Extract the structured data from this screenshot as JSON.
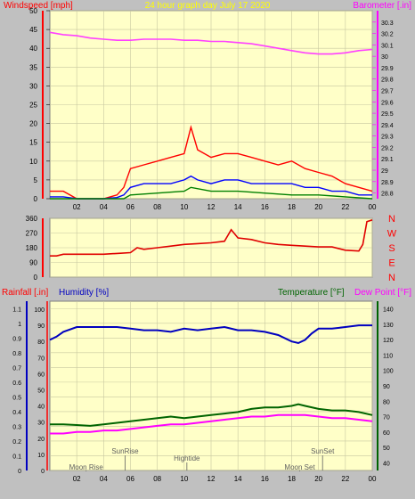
{
  "title": "24 hour graph day   July 17 2020",
  "colors": {
    "background": "#c0c0c0",
    "plot_bg": "#ffffc8",
    "grid": "#c8c8a0",
    "wind_axis": "#ff0000",
    "baro_axis": "#ff00ff",
    "wind": "#ff0000",
    "wind_avg": "#0000ff",
    "wind_low": "#008000",
    "barometer": "#ff40ff",
    "direction": "#e00000",
    "rain_axis": "#ff0000",
    "humidity": "#0000c0",
    "temperature": "#006400",
    "dewpoint": "#ff00ff",
    "title_color": "#ffff00",
    "annotation": "#606060"
  },
  "chart_data": [
    {
      "id": "wind-barometer",
      "type": "line",
      "left_label": "Windspeed [mph]",
      "right_label": "Barometer [.in]",
      "x_ticks": [
        "02",
        "04",
        "06",
        "08",
        "10",
        "12",
        "14",
        "16",
        "18",
        "20",
        "22",
        "00"
      ],
      "x_range": [
        0,
        24
      ],
      "left_ylim": [
        0,
        50
      ],
      "left_ticks": [
        "0",
        "5",
        "10",
        "15",
        "20",
        "25",
        "30",
        "35",
        "40",
        "45",
        "50"
      ],
      "right_ylim": [
        28.75,
        30.4
      ],
      "right_ticks": [
        "28.8",
        "28.9",
        "29",
        "29.1",
        "29.2",
        "29.3",
        "29.4",
        "29.5",
        "29.6",
        "29.7",
        "29.8",
        "29.9",
        "30",
        "30.1",
        "30.2",
        "30.3"
      ],
      "series": [
        {
          "key": "barometer",
          "axis": "right",
          "x": [
            0,
            1,
            2,
            3,
            4,
            5,
            6,
            7,
            8,
            9,
            10,
            11,
            12,
            13,
            14,
            15,
            16,
            17,
            18,
            19,
            20,
            21,
            22,
            23,
            24
          ],
          "values": [
            30.21,
            30.19,
            30.18,
            30.16,
            30.15,
            30.14,
            30.14,
            30.15,
            30.15,
            30.15,
            30.14,
            30.14,
            30.13,
            30.13,
            30.12,
            30.11,
            30.09,
            30.07,
            30.05,
            30.03,
            30.02,
            30.02,
            30.03,
            30.05,
            30.06
          ]
        },
        {
          "key": "wind_gust",
          "axis": "left",
          "x": [
            0,
            1,
            2,
            3,
            4,
            5,
            5.5,
            6,
            7,
            8,
            9,
            10,
            10.5,
            11,
            12,
            13,
            14,
            15,
            16,
            17,
            18,
            19,
            20,
            21,
            22,
            23,
            24
          ],
          "values": [
            2,
            2,
            0,
            0,
            0,
            1,
            3,
            8,
            9,
            10,
            11,
            12,
            19,
            13,
            11,
            12,
            12,
            11,
            10,
            9,
            10,
            8,
            7,
            6,
            4,
            3,
            2
          ]
        },
        {
          "key": "wind_avg",
          "axis": "left",
          "x": [
            0,
            1,
            2,
            3,
            4,
            5,
            5.5,
            6,
            7,
            8,
            9,
            10,
            10.5,
            11,
            12,
            13,
            14,
            15,
            16,
            17,
            18,
            19,
            20,
            21,
            22,
            23,
            24
          ],
          "values": [
            0.5,
            0.5,
            0,
            0,
            0,
            0.3,
            1,
            3,
            4,
            4,
            4,
            5,
            6,
            5,
            4,
            5,
            5,
            4,
            4,
            4,
            4,
            3,
            3,
            2,
            2,
            1,
            1
          ]
        },
        {
          "key": "wind_low",
          "axis": "left",
          "x": [
            0,
            2,
            4,
            5.5,
            6,
            8,
            10,
            10.5,
            12,
            14,
            16,
            18,
            20,
            22,
            24
          ],
          "values": [
            0,
            0,
            0,
            0,
            1,
            1.5,
            2,
            3,
            2,
            2,
            1.5,
            1,
            1,
            0.5,
            0
          ]
        }
      ]
    },
    {
      "id": "wind-direction",
      "type": "line",
      "left_ticks": [
        "0",
        "90",
        "180",
        "270",
        "360"
      ],
      "ylim": [
        0,
        360
      ],
      "compass_labels": [
        "N",
        "W",
        "S",
        "E",
        "N"
      ],
      "x_range": [
        0,
        24
      ],
      "series": [
        {
          "key": "direction",
          "x": [
            0,
            0.5,
            1,
            2,
            3,
            4,
            5,
            6,
            6.5,
            7,
            8,
            9,
            10,
            11,
            12,
            13,
            13.5,
            14,
            15,
            16,
            17,
            18,
            19,
            20,
            21,
            22,
            23,
            23.3,
            23.6,
            24
          ],
          "values": [
            130,
            130,
            140,
            140,
            140,
            140,
            145,
            150,
            180,
            170,
            180,
            190,
            200,
            205,
            210,
            220,
            290,
            240,
            230,
            210,
            200,
            195,
            190,
            185,
            185,
            165,
            160,
            200,
            340,
            350
          ]
        }
      ]
    },
    {
      "id": "rain-humidity-temp",
      "type": "line",
      "labels": {
        "rainfall": "Rainfall [.in]",
        "humidity": "Humidity [%]",
        "temperature": "Temperature [°F]",
        "dewpoint": "Dew Point [°F]"
      },
      "x_ticks": [
        "02",
        "04",
        "06",
        "08",
        "10",
        "12",
        "14",
        "16",
        "18",
        "20",
        "22",
        "00"
      ],
      "x_range": [
        0,
        24
      ],
      "rain_ylim": [
        0,
        1.15
      ],
      "rain_ticks": [
        "0",
        "0.1",
        "0.2",
        "0.3",
        "0.4",
        "0.5",
        "0.6",
        "0.7",
        "0.8",
        "0.9",
        "1",
        "1.1"
      ],
      "humidity_ylim": [
        0,
        105
      ],
      "humidity_ticks": [
        "0",
        "10",
        "20",
        "30",
        "40",
        "50",
        "60",
        "70",
        "80",
        "90",
        "100"
      ],
      "temp_ylim": [
        35,
        145
      ],
      "temp_ticks": [
        "40",
        "50",
        "60",
        "70",
        "80",
        "90",
        "100",
        "110",
        "120",
        "130",
        "140"
      ],
      "series": [
        {
          "key": "humidity",
          "axis": "humidity",
          "x": [
            0,
            0.5,
            1,
            2,
            3,
            4,
            5,
            6,
            7,
            8,
            9,
            10,
            11,
            12,
            13,
            14,
            15,
            16,
            17,
            18,
            18.5,
            19,
            19.5,
            20,
            21,
            22,
            23,
            24
          ],
          "values": [
            81,
            83,
            86,
            89,
            89,
            89,
            89,
            88,
            87,
            87,
            86,
            88,
            87,
            88,
            89,
            87,
            87,
            86,
            84,
            80,
            79,
            81,
            85,
            88,
            88,
            89,
            90,
            90
          ]
        },
        {
          "key": "temperature",
          "axis": "temp",
          "x": [
            0,
            1,
            2,
            3,
            4,
            5,
            6,
            7,
            8,
            9,
            10,
            11,
            12,
            13,
            14,
            15,
            16,
            17,
            18,
            18.5,
            19,
            20,
            21,
            22,
            23,
            24
          ],
          "values": [
            65,
            65,
            64.5,
            64,
            65,
            66,
            67,
            68,
            69,
            70,
            69,
            70,
            71,
            72,
            73,
            75,
            76,
            76,
            77,
            78,
            77,
            75,
            74,
            74,
            73,
            71
          ]
        },
        {
          "key": "dewpoint",
          "axis": "temp",
          "x": [
            0,
            1,
            2,
            3,
            4,
            5,
            6,
            7,
            8,
            9,
            10,
            11,
            12,
            13,
            14,
            15,
            16,
            17,
            18,
            19,
            20,
            21,
            22,
            23,
            24
          ],
          "values": [
            59,
            59,
            60,
            60,
            61,
            61,
            62,
            63,
            64,
            65,
            65,
            66,
            67,
            68,
            69,
            70,
            70,
            71,
            71,
            71,
            70,
            69,
            69,
            68,
            67
          ]
        }
      ],
      "annotations": [
        {
          "label": "SunRise",
          "x": 5.6,
          "row": "upper"
        },
        {
          "label": "Moon Rise",
          "x": 2.7,
          "row": "lower"
        },
        {
          "label": "Hightide",
          "x": 10.2,
          "row": "middle"
        },
        {
          "label": "SunSet",
          "x": 20.3,
          "row": "upper"
        },
        {
          "label": "Moon Set",
          "x": 18.6,
          "row": "lower"
        }
      ]
    }
  ]
}
